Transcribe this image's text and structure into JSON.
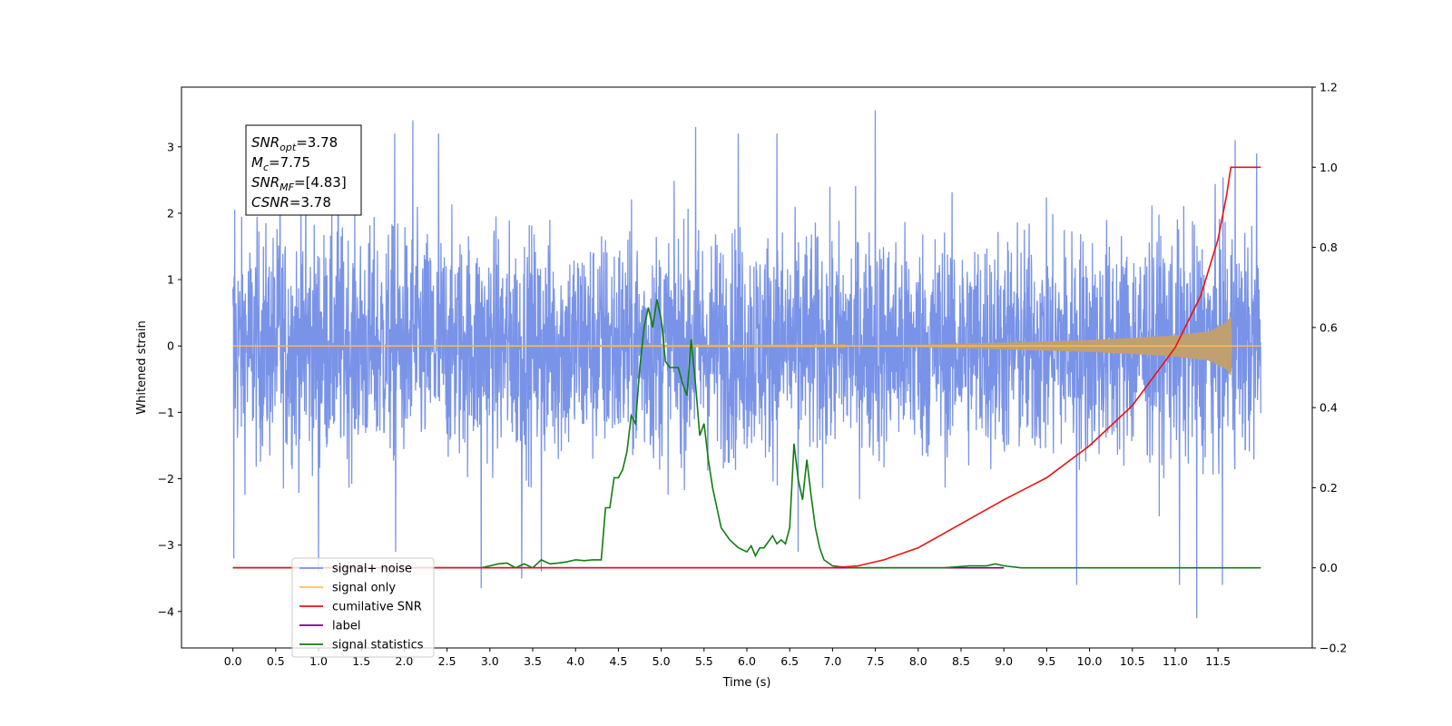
{
  "chart_data": {
    "type": "line",
    "title": "",
    "xlabel": "Time (s)",
    "ylabel": "Whitened strain",
    "y2label": "",
    "xlim": [
      -0.6,
      12.6
    ],
    "ylim": [
      -4.55,
      3.9
    ],
    "y2lim": [
      -0.2,
      1.2
    ],
    "x_ticks": [
      0.0,
      0.5,
      1.0,
      1.5,
      2.0,
      2.5,
      3.0,
      3.5,
      4.0,
      4.5,
      5.0,
      5.5,
      6.0,
      6.5,
      7.0,
      7.5,
      8.0,
      8.5,
      9.0,
      9.5,
      10.0,
      10.5,
      11.0,
      11.5
    ],
    "x_tick_labels": [
      "0.0",
      "0.5",
      "1.0",
      "1.5",
      "2.0",
      "2.5",
      "3.0",
      "3.5",
      "4.0",
      "4.5",
      "5.0",
      "5.5",
      "6.0",
      "6.5",
      "7.0",
      "7.5",
      "8.0",
      "8.5",
      "9.0",
      "9.5",
      "10.0",
      "10.5",
      "11.0",
      "11.5"
    ],
    "y_ticks": [
      3,
      2,
      1,
      0,
      -1,
      -2,
      -3,
      -4
    ],
    "y_tick_labels": [
      "3",
      "2",
      "1",
      "0",
      "−1",
      "−2",
      "−3",
      "−4"
    ],
    "y2_ticks": [
      1.2,
      1.0,
      0.8,
      0.6,
      0.4,
      0.2,
      0.0,
      -0.2
    ],
    "y2_tick_labels": [
      "1.2",
      "1.0",
      "0.8",
      "0.6",
      "0.4",
      "0.2",
      "0.0",
      "−0.2"
    ],
    "grid": false,
    "legend_placement": "lower-left",
    "annotation": {
      "lines": [
        {
          "base": "SNR",
          "sub": "opt",
          "rest": "=3.78"
        },
        {
          "base": "M",
          "sub": "c",
          "rest": "=7.75"
        },
        {
          "base": "SNR",
          "sub": "MF",
          "rest": "=[4.83]"
        },
        {
          "base": "CSNR",
          "sub": "",
          "rest": "=3.78"
        }
      ]
    },
    "series": [
      {
        "name": "signal+ noise",
        "color": "#7993e8",
        "axis": "left",
        "kind": "noise",
        "x_range": [
          0.0,
          12.0
        ],
        "typical_range": [
          -1.9,
          1.9
        ],
        "peaks": [
          {
            "x": 0.01,
            "y": -3.2
          },
          {
            "x": 0.02,
            "y": 2.05
          },
          {
            "x": 0.55,
            "y": 3.1
          },
          {
            "x": 0.85,
            "y": 3.3
          },
          {
            "x": 1.0,
            "y": -3.4
          },
          {
            "x": 1.23,
            "y": 3.0
          },
          {
            "x": 1.89,
            "y": 3.2
          },
          {
            "x": 1.9,
            "y": -3.1
          },
          {
            "x": 2.1,
            "y": 3.4
          },
          {
            "x": 2.4,
            "y": 3.2
          },
          {
            "x": 2.9,
            "y": -3.65
          },
          {
            "x": 3.37,
            "y": -3.5
          },
          {
            "x": 3.6,
            "y": -3.4
          },
          {
            "x": 5.4,
            "y": 3.3
          },
          {
            "x": 5.9,
            "y": 3.2
          },
          {
            "x": 6.35,
            "y": 3.2
          },
          {
            "x": 6.6,
            "y": -3.1
          },
          {
            "x": 7.5,
            "y": 3.55
          },
          {
            "x": 9.85,
            "y": -3.6
          },
          {
            "x": 11.05,
            "y": -3.6
          },
          {
            "x": 11.25,
            "y": -4.1
          },
          {
            "x": 11.55,
            "y": -3.6
          },
          {
            "x": 11.7,
            "y": 3.1
          },
          {
            "x": 11.95,
            "y": 2.9
          }
        ]
      },
      {
        "name": "signal only",
        "color": "#ffbf5a",
        "axis": "left",
        "kind": "chirp",
        "x_range": [
          0.0,
          12.0
        ],
        "envelope": [
          [
            0.0,
            0.0
          ],
          [
            7.0,
            0.005
          ],
          [
            8.0,
            0.02
          ],
          [
            9.0,
            0.05
          ],
          [
            10.0,
            0.09
          ],
          [
            10.5,
            0.12
          ],
          [
            11.0,
            0.16
          ],
          [
            11.4,
            0.22
          ],
          [
            11.6,
            0.35
          ],
          [
            11.65,
            0.45
          ],
          [
            11.66,
            0.0
          ]
        ]
      },
      {
        "name": "cumilative SNR",
        "color": "#ee1111",
        "axis": "right",
        "points": [
          [
            0.0,
            0.0
          ],
          [
            7.0,
            0.0
          ],
          [
            7.3,
            0.005
          ],
          [
            7.6,
            0.02
          ],
          [
            8.0,
            0.05
          ],
          [
            8.5,
            0.11
          ],
          [
            9.0,
            0.17
          ],
          [
            9.5,
            0.225
          ],
          [
            10.0,
            0.305
          ],
          [
            10.5,
            0.405
          ],
          [
            11.0,
            0.55
          ],
          [
            11.3,
            0.68
          ],
          [
            11.5,
            0.82
          ],
          [
            11.6,
            0.93
          ],
          [
            11.65,
            1.0
          ],
          [
            12.0,
            1.0
          ]
        ]
      },
      {
        "name": "label",
        "color": "#7a0080",
        "axis": "right",
        "points": [
          [
            0.0,
            0.0
          ],
          [
            9.0,
            0.0
          ]
        ]
      },
      {
        "name": "signal statistics",
        "color": "#117d11",
        "axis": "right",
        "points": [
          [
            0.0,
            0.0
          ],
          [
            2.9,
            0.0
          ],
          [
            3.0,
            0.005
          ],
          [
            3.1,
            0.01
          ],
          [
            3.2,
            0.012
          ],
          [
            3.3,
            0.0
          ],
          [
            3.4,
            0.01
          ],
          [
            3.5,
            0.0
          ],
          [
            3.6,
            0.02
          ],
          [
            3.7,
            0.01
          ],
          [
            3.8,
            0.012
          ],
          [
            3.9,
            0.015
          ],
          [
            4.0,
            0.02
          ],
          [
            4.1,
            0.018
          ],
          [
            4.2,
            0.02
          ],
          [
            4.3,
            0.02
          ],
          [
            4.35,
            0.15
          ],
          [
            4.4,
            0.15
          ],
          [
            4.45,
            0.225
          ],
          [
            4.5,
            0.225
          ],
          [
            4.55,
            0.245
          ],
          [
            4.6,
            0.29
          ],
          [
            4.65,
            0.38
          ],
          [
            4.7,
            0.36
          ],
          [
            4.75,
            0.5
          ],
          [
            4.8,
            0.6
          ],
          [
            4.85,
            0.65
          ],
          [
            4.9,
            0.6
          ],
          [
            4.95,
            0.67
          ],
          [
            5.0,
            0.62
          ],
          [
            5.05,
            0.515
          ],
          [
            5.1,
            0.5
          ],
          [
            5.15,
            0.5
          ],
          [
            5.2,
            0.5
          ],
          [
            5.25,
            0.46
          ],
          [
            5.3,
            0.43
          ],
          [
            5.35,
            0.57
          ],
          [
            5.4,
            0.46
          ],
          [
            5.45,
            0.33
          ],
          [
            5.5,
            0.36
          ],
          [
            5.55,
            0.27
          ],
          [
            5.6,
            0.2
          ],
          [
            5.65,
            0.15
          ],
          [
            5.7,
            0.1
          ],
          [
            5.8,
            0.07
          ],
          [
            5.9,
            0.05
          ],
          [
            6.0,
            0.04
          ],
          [
            6.05,
            0.055
          ],
          [
            6.1,
            0.03
          ],
          [
            6.15,
            0.05
          ],
          [
            6.2,
            0.05
          ],
          [
            6.3,
            0.08
          ],
          [
            6.35,
            0.06
          ],
          [
            6.4,
            0.07
          ],
          [
            6.45,
            0.06
          ],
          [
            6.5,
            0.1
          ],
          [
            6.55,
            0.31
          ],
          [
            6.6,
            0.22
          ],
          [
            6.65,
            0.17
          ],
          [
            6.7,
            0.27
          ],
          [
            6.75,
            0.18
          ],
          [
            6.8,
            0.1
          ],
          [
            6.85,
            0.05
          ],
          [
            6.9,
            0.02
          ],
          [
            7.0,
            0.005
          ],
          [
            7.2,
            0.0
          ],
          [
            8.3,
            0.0
          ],
          [
            8.6,
            0.005
          ],
          [
            8.8,
            0.005
          ],
          [
            8.9,
            0.01
          ],
          [
            9.0,
            0.005
          ],
          [
            9.2,
            0.0
          ],
          [
            12.0,
            0.0
          ]
        ]
      }
    ]
  }
}
